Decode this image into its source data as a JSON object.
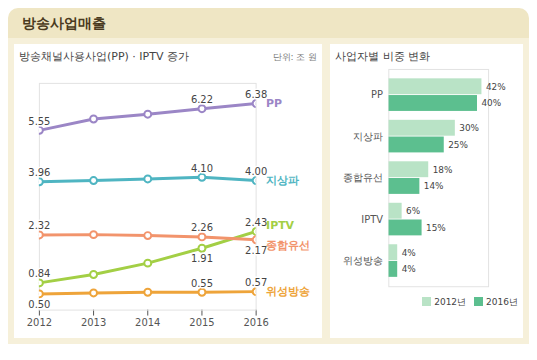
{
  "title": "방송사업매출",
  "chart_data": [
    {
      "type": "line",
      "title": "방송채널사용사업(PP) · IPTV 증가",
      "unit": "단위: 조 원",
      "x": [
        2012,
        2013,
        2014,
        2015,
        2016
      ],
      "xlim": [
        2012,
        2016
      ],
      "xticks": [
        2012,
        2013,
        2014,
        2015,
        2016
      ],
      "ylim": [
        0,
        7
      ],
      "tick_labels": "x",
      "data_labels": true,
      "marker": "circle",
      "series": [
        {
          "name": "PP",
          "color": "#9b86c6",
          "values": [
            5.55,
            5.9,
            6.05,
            6.22,
            6.38
          ],
          "value_labels": [
            "5.55",
            null,
            null,
            "6.22",
            "6.38"
          ]
        },
        {
          "name": "지상파",
          "color": "#4fb5c2",
          "values": [
            3.96,
            4.0,
            4.05,
            4.1,
            4.0
          ],
          "value_labels": [
            "3.96",
            null,
            null,
            "4.10",
            "4.00"
          ]
        },
        {
          "name": "IPTV",
          "color": "#a3cf45",
          "values": [
            0.84,
            1.1,
            1.45,
            1.91,
            2.43
          ],
          "value_labels": [
            "0.84",
            null,
            null,
            "1.91",
            "2.43"
          ]
        },
        {
          "name": "종합유선",
          "color": "#f2946c",
          "values": [
            2.32,
            2.33,
            2.3,
            2.26,
            2.17
          ],
          "value_labels": [
            "2.32",
            null,
            null,
            "2.26",
            "2.17"
          ]
        },
        {
          "name": "위성방송",
          "color": "#eea43a",
          "values": [
            0.5,
            0.53,
            0.55,
            0.55,
            0.57
          ],
          "value_labels": [
            "0.50",
            null,
            null,
            "0.55",
            "0.57"
          ]
        }
      ]
    },
    {
      "type": "bar",
      "title": "사업자별 비중 변화",
      "orientation": "horizontal",
      "categories": [
        "PP",
        "지상파",
        "종합유선",
        "IPTV",
        "위성방송"
      ],
      "xlim": [
        0,
        45
      ],
      "tick_labels": "y",
      "data_labels": true,
      "legend": "bottom-right",
      "series": [
        {
          "name": "2012년",
          "color": "#b9e3c6",
          "values": [
            42,
            30,
            18,
            6,
            4
          ],
          "value_labels": [
            "42%",
            "30%",
            "18%",
            "6%",
            "4%"
          ]
        },
        {
          "name": "2016년",
          "color": "#5cbf8f",
          "values": [
            40,
            25,
            14,
            15,
            4
          ],
          "value_labels": [
            "40%",
            "25%",
            "14%",
            "15%",
            "4%"
          ]
        }
      ]
    }
  ]
}
